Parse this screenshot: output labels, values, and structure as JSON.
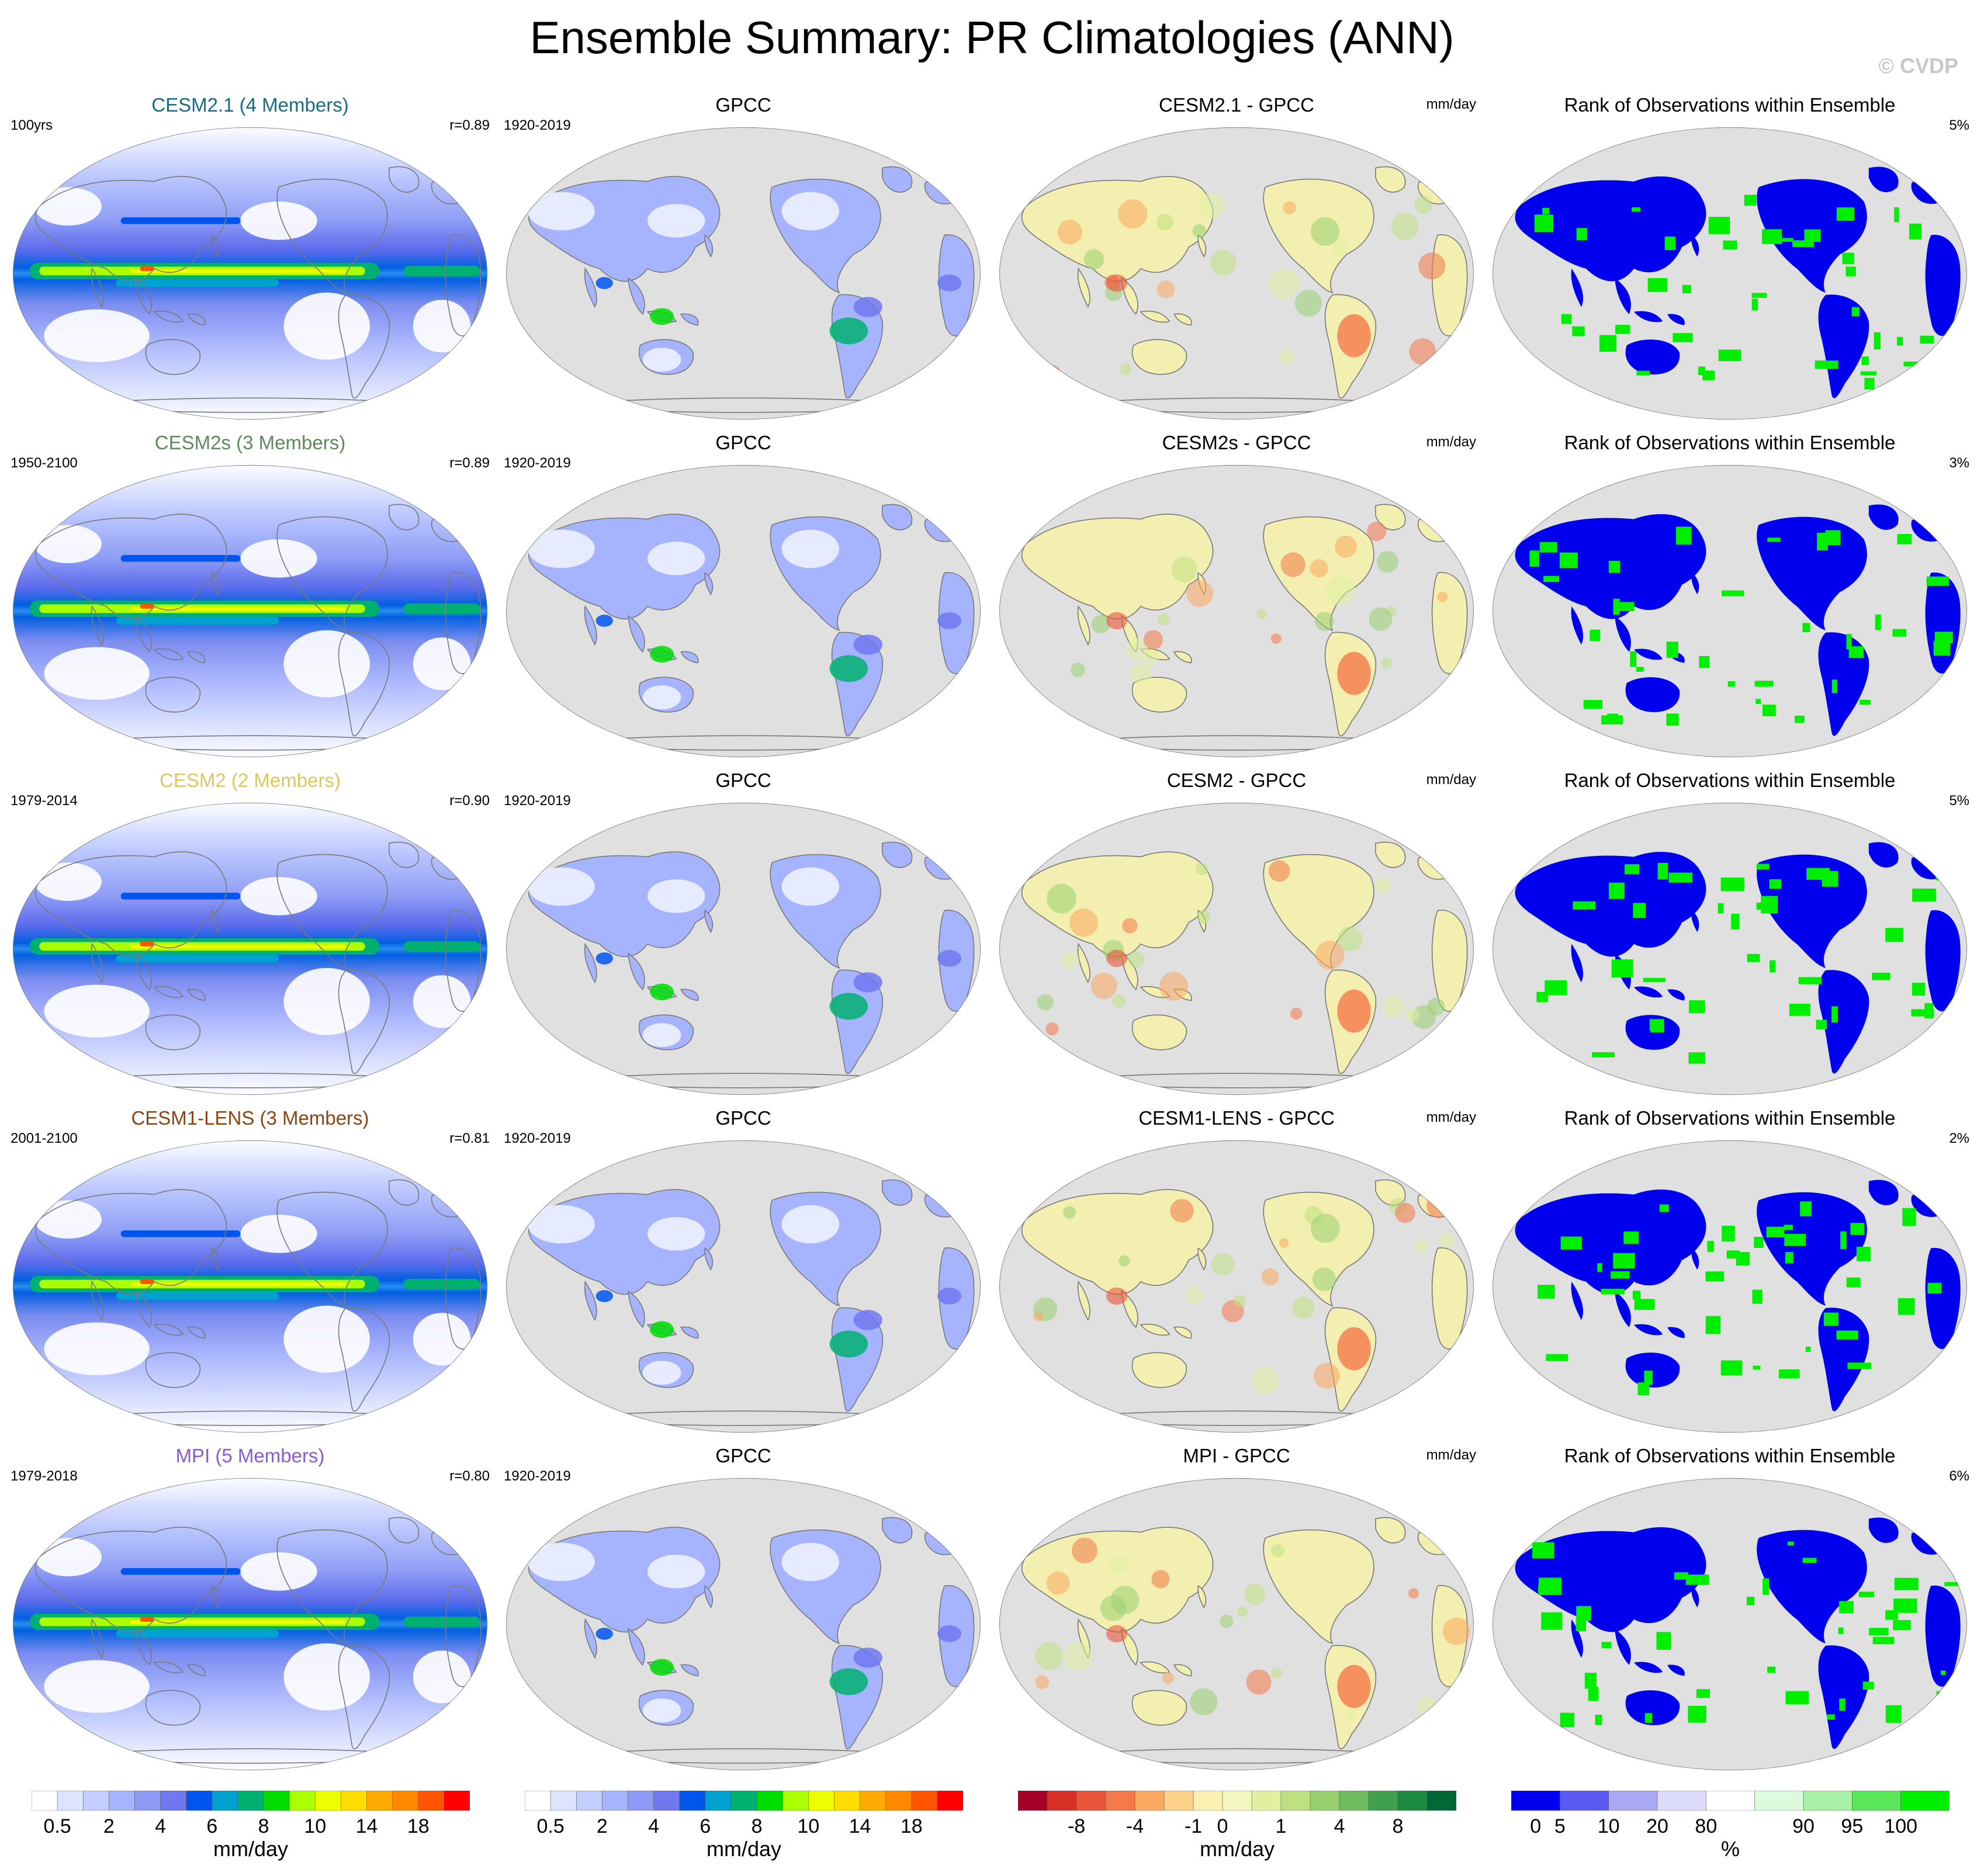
{
  "title": "Ensemble Summary: PR Climatologies (ANN)",
  "logo_text": "© CVDP",
  "colors": {
    "ocean": "#e0e0e0",
    "coastline": "#7a7a7a",
    "rank_low": "#0000ee",
    "rank_high": "#00ee00"
  },
  "chart_data": {
    "type": "heatmap",
    "rows": [
      {
        "model": "CESM2.1 (4 Members)",
        "title_color": "#1a6b84",
        "period": "100yrs",
        "r": "r=0.89",
        "obs_title": "GPCC",
        "obs_period": "1920-2019",
        "diff_title": "CESM2.1 - GPCC",
        "diff_unit": "mm/day",
        "rank_title": "Rank of Observations within Ensemble",
        "rank_pct": "5%"
      },
      {
        "model": "CESM2s (3 Members)",
        "title_color": "#5d8a5d",
        "period": "1950-2100",
        "r": "r=0.89",
        "obs_title": "GPCC",
        "obs_period": "1920-2019",
        "diff_title": "CESM2s - GPCC",
        "diff_unit": "mm/day",
        "rank_title": "Rank of Observations within Ensemble",
        "rank_pct": "3%"
      },
      {
        "model": "CESM2 (2 Members)",
        "title_color": "#d8c860",
        "period": "1979-2014",
        "r": "r=0.90",
        "obs_title": "GPCC",
        "obs_period": "1920-2019",
        "diff_title": "CESM2 - GPCC",
        "diff_unit": "mm/day",
        "rank_title": "Rank of Observations within Ensemble",
        "rank_pct": "5%"
      },
      {
        "model": "CESM1-LENS (3 Members)",
        "title_color": "#8b4513",
        "period": "2001-2100",
        "r": "r=0.81",
        "obs_title": "GPCC",
        "obs_period": "1920-2019",
        "diff_title": "CESM1-LENS - GPCC",
        "diff_unit": "mm/day",
        "rank_title": "Rank of Observations within Ensemble",
        "rank_pct": "2%"
      },
      {
        "model": "MPI (5 Members)",
        "title_color": "#8a5ad0",
        "period": "1979-2018",
        "r": "r=0.80",
        "obs_title": "GPCC",
        "obs_period": "1920-2019",
        "diff_title": "MPI - GPCC",
        "diff_unit": "mm/day",
        "rank_title": "Rank of Observations within Ensemble",
        "rank_pct": "6%"
      }
    ],
    "colorbars": [
      {
        "unit": "mm/day",
        "colors": [
          "#ffffff",
          "#dde4ff",
          "#c2ceff",
          "#a6b4ff",
          "#8c9af5",
          "#6f78ee",
          "#0055ee",
          "#00a0d0",
          "#00b070",
          "#00dd00",
          "#aaff00",
          "#eeff00",
          "#ffdd00",
          "#ffaa00",
          "#ff8800",
          "#ff5500",
          "#ff0000"
        ],
        "labels": [
          "0.5",
          "2",
          "4",
          "6",
          "8",
          "10",
          "14",
          "18"
        ],
        "label_bounds": [
          1,
          3,
          5,
          7,
          9,
          11,
          13,
          15
        ]
      },
      {
        "unit": "mm/day",
        "colors": [
          "#ffffff",
          "#dde4ff",
          "#c2ceff",
          "#a6b4ff",
          "#8c9af5",
          "#6f78ee",
          "#0055ee",
          "#00a0d0",
          "#00b070",
          "#00dd00",
          "#aaff00",
          "#eeff00",
          "#ffdd00",
          "#ffaa00",
          "#ff8800",
          "#ff5500",
          "#ff0000"
        ],
        "labels": [
          "0.5",
          "2",
          "4",
          "6",
          "8",
          "10",
          "14",
          "18"
        ],
        "label_bounds": [
          1,
          3,
          5,
          7,
          9,
          11,
          13,
          15
        ]
      },
      {
        "unit": "mm/day",
        "colors": [
          "#a50026",
          "#d73027",
          "#e8553a",
          "#f4794a",
          "#f9a860",
          "#fdd08a",
          "#fbf0b2",
          "#f5f7c0",
          "#e0f0a0",
          "#bfe080",
          "#98d070",
          "#6fbd60",
          "#41a050",
          "#1c8a40",
          "#006837"
        ],
        "labels": [
          "-8",
          "-4",
          "-1",
          "0",
          "1",
          "4",
          "8"
        ],
        "label_bounds": [
          2,
          4,
          6,
          7,
          9,
          11,
          13
        ]
      },
      {
        "unit": "%",
        "colors": [
          "#0000ee",
          "#5a5af0",
          "#a8a8f5",
          "#dcdcfa",
          "#ffffff",
          "#dcfadc",
          "#a8f0a8",
          "#5ae85a",
          "#00ee00"
        ],
        "labels": [
          "0",
          "5",
          "10",
          "20",
          "80",
          "90",
          "95",
          "100"
        ],
        "label_bounds": [
          0.5,
          1,
          2,
          3,
          4,
          6,
          7,
          8
        ]
      }
    ]
  }
}
